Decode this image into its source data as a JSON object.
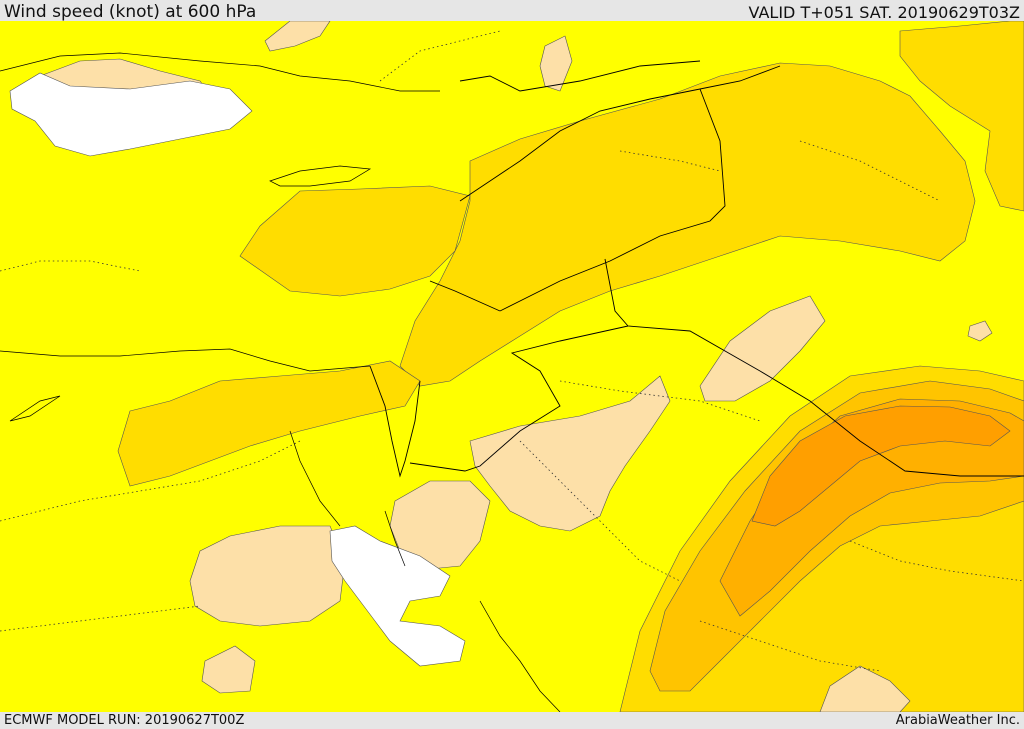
{
  "header": {
    "title": "Wind speed (knot) at 600 hPa",
    "valid": "VALID T+051 SAT. 20190629T03Z"
  },
  "footer": {
    "model_run": "ECMWF MODEL RUN: 20190627T00Z",
    "credit": "ArabiaWeather Inc."
  },
  "colors": {
    "calm": "#ffffff",
    "light": "#fde0a8",
    "base": "#ffff00",
    "moderate": "#ffdd00",
    "fresh": "#ffc400",
    "strong": "#ffb000",
    "jet_core": "#ff9f00"
  }
}
